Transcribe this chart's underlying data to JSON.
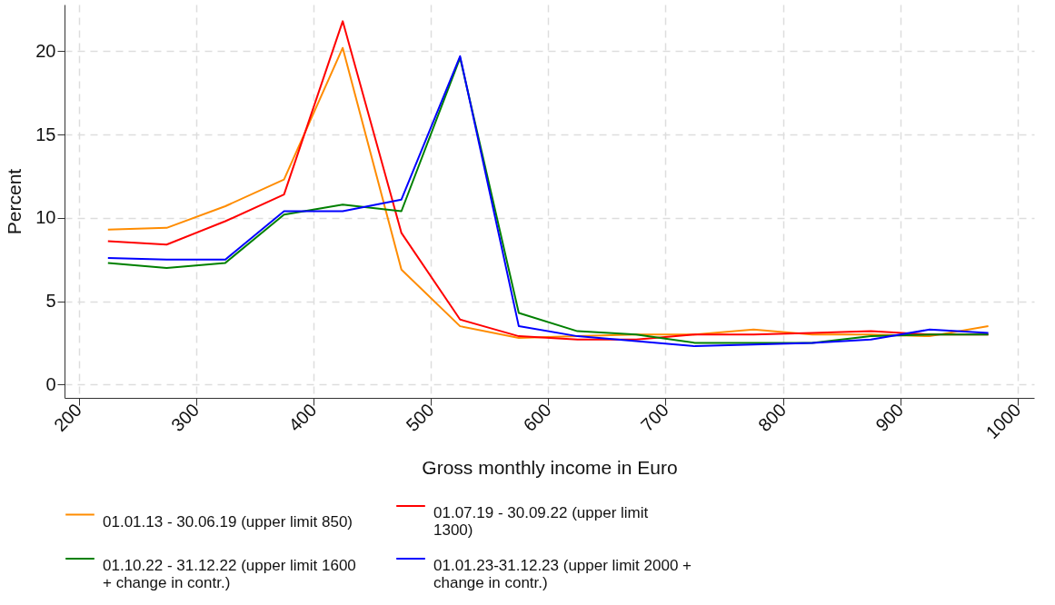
{
  "chart_data": {
    "type": "line",
    "xlabel": "Gross monthly income in Euro",
    "ylabel": "Percent",
    "x": [
      225,
      275,
      325,
      375,
      425,
      475,
      525,
      575,
      625,
      675,
      725,
      775,
      825,
      875,
      925,
      975
    ],
    "xlim": [
      188,
      1014
    ],
    "xticks": [
      200,
      300,
      400,
      500,
      600,
      700,
      800,
      900,
      1000
    ],
    "ylim": [
      -0.8,
      22.8
    ],
    "yticks": [
      0,
      5,
      10,
      15,
      20
    ],
    "grid": true,
    "legend": "bottom",
    "line_style": "solid",
    "marker": "none",
    "series": [
      {
        "name": "01.01.13 - 30.06.19 (upper limit 850)",
        "color": "#ff8c00",
        "values": [
          9.3,
          9.4,
          10.7,
          12.3,
          20.2,
          6.9,
          3.5,
          2.8,
          2.9,
          3.0,
          3.0,
          3.3,
          3.0,
          3.0,
          2.9,
          3.5
        ]
      },
      {
        "name": "01.07.19 - 30.09.22 (upper limit 1300)",
        "color": "#ff0000",
        "values": [
          8.6,
          8.4,
          9.8,
          11.4,
          21.8,
          9.1,
          3.9,
          2.9,
          2.7,
          2.7,
          3.0,
          3.0,
          3.1,
          3.2,
          3.0,
          3.0
        ]
      },
      {
        "name": "01.10.22 - 31.12.22 (upper limit 1600 + change in contr.)",
        "color": "#008000",
        "values": [
          7.3,
          7.0,
          7.3,
          10.2,
          10.8,
          10.4,
          19.6,
          4.3,
          3.2,
          3.0,
          2.5,
          2.5,
          2.5,
          2.9,
          3.0,
          3.0
        ]
      },
      {
        "name": "01.01.23-31.12.23 (upper limit 2000 + change in contr.)",
        "color": "#0000ff",
        "values": [
          7.6,
          7.5,
          7.5,
          10.4,
          10.4,
          11.1,
          19.7,
          3.5,
          2.9,
          2.6,
          2.3,
          2.4,
          2.5,
          2.7,
          3.3,
          3.1
        ]
      }
    ]
  }
}
